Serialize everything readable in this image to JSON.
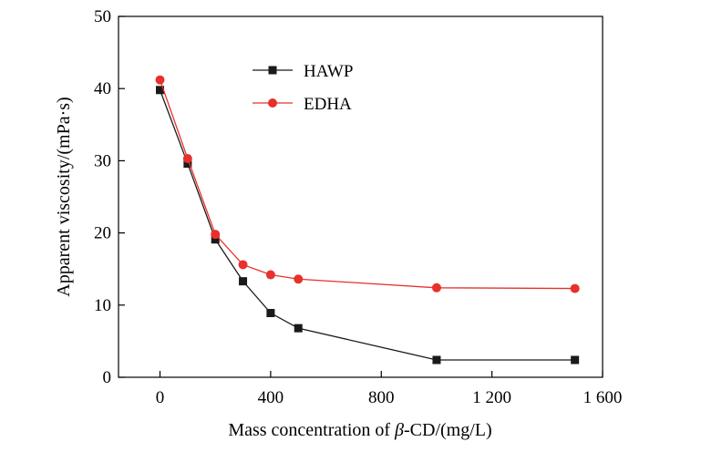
{
  "chart_data": {
    "type": "line",
    "title": "",
    "xlabel_parts": [
      "Mass concentration of ",
      "β",
      "-CD/(mg/L)"
    ],
    "ylabel": "Apparent viscosity/(mPa·s)",
    "xlim": [
      -150,
      1600
    ],
    "ylim": [
      0,
      50
    ],
    "x_ticks": [
      0,
      400,
      800,
      1200,
      1600
    ],
    "x_tick_labels": [
      "0",
      "400",
      "800",
      "1 200",
      "1 600"
    ],
    "y_ticks": [
      0,
      10,
      20,
      30,
      40,
      50
    ],
    "y_tick_labels": [
      "0",
      "10",
      "20",
      "30",
      "40",
      "50"
    ],
    "grid": false,
    "legend_position": "top-center",
    "series": [
      {
        "name": "HAWP",
        "color": "#1a1a1a",
        "marker": "square",
        "x": [
          0,
          100,
          200,
          300,
          400,
          500,
          1000,
          1500
        ],
        "y": [
          39.8,
          29.6,
          19.1,
          13.3,
          8.9,
          6.8,
          2.4,
          2.4
        ]
      },
      {
        "name": "EDHA",
        "color": "#e8312a",
        "marker": "circle",
        "x": [
          0,
          100,
          200,
          300,
          400,
          500,
          1000,
          1500
        ],
        "y": [
          41.2,
          30.3,
          19.8,
          15.6,
          14.2,
          13.6,
          12.4,
          12.3
        ]
      }
    ]
  }
}
